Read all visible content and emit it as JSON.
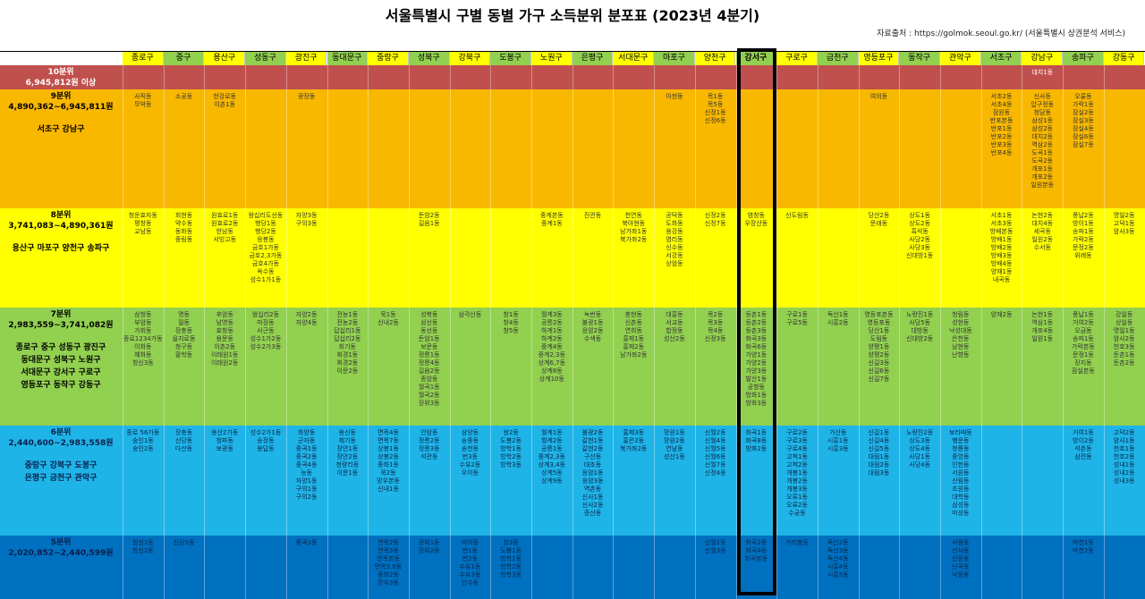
{
  "title": "서울특별시 구별 동별 가구 소득분위 분포표 (2023년 4분기)",
  "source": "자료출처 : https://golmok.seoul.go.kr/ (서울특별시 상권분석 서비스)",
  "districts": [
    "종로구",
    "중구",
    "용산구",
    "성동구",
    "광진구",
    "동대문구",
    "중랑구",
    "성북구",
    "강북구",
    "도봉구",
    "노원구",
    "은평구",
    "서대문구",
    "마포구",
    "양천구",
    "강서구",
    "구로구",
    "금천구",
    "영등포구",
    "동작구",
    "관악구",
    "서초구",
    "강남구",
    "송파구",
    "강동구"
  ],
  "highlighted_district": "강서구",
  "tiers": [
    {
      "name": "10분위",
      "range": "6,945,812원 이상",
      "districts_line": "",
      "color": "#c0504d",
      "cells": {
        "22": "대치1동"
      }
    },
    {
      "name": "9분위",
      "range": "4,890,362~6,945,811원",
      "districts_line": "서초구 강남구",
      "color": "#f9b800",
      "cells": {
        "0": "사직동\n무악동",
        "1": "소공동",
        "2": "한강로동\n이촌1동",
        "4": "광장동",
        "13": "아현동",
        "14": "목1동\n목5동\n신정1동\n신정6동",
        "18": "여의동",
        "21": "서초2동\n서초4동\n잠원동\n반포본동\n반포1동\n반포2동\n반포3동\n반포4동",
        "22": "신사동\n압구정동\n청담동\n삼성1동\n삼성2동\n대치2동\n역삼2동\n도곡1동\n도곡2동\n개포1동\n개포2동\n일원본동",
        "23": "오륜동\n가락1동\n잠실2동\n잠실3동\n잠실4동\n잠실6동\n잠실7동"
      }
    },
    {
      "name": "8분위",
      "range": "3,741,083~4,890,361원",
      "districts_line": "용산구 마포구 양천구 송파구",
      "color": "#ffff00",
      "cells": {
        "0": "청운효자동\n평창동\n교남동",
        "1": "회현동\n약수동\n동화동\n중림동",
        "2": "원효로1동\n원효로2동\n한남동\n서빙고동",
        "3": "왕십리도선동\n행당1동\n행당2동\n응봉동\n금호1가동\n금호2,3가동\n금호4가동\n옥수동\n성수1가1동",
        "4": "자양3동\n구의3동",
        "7": "돈암2동\n길음1동",
        "10": "중계본동\n중계1동",
        "11": "진관동",
        "12": "천연동\n북아현동\n남가좌1동\n북가좌2동",
        "13": "공덕동\n도화동\n용강동\n염리동\n신수동\n서강동\n상암동",
        "14": "신정2동\n신정7동",
        "15": "염창동\n우장산동",
        "16": "신도림동",
        "18": "당산2동\n문래동",
        "19": "상도1동\n상도2동\n흑석동\n사당2동\n사당3동\n신대방1동",
        "21": "서초1동\n서초3동\n방배본동\n방배1동\n방배2동\n방배3동\n방배4동\n양재1동\n내곡동",
        "22": "논현2동\n대치4동\n세곡동\n일원2동\n수서동",
        "23": "풍납2동\n방이1동\n송파1동\n가락2동\n문정2동\n위례동",
        "24": "명일2동\n고덕1동\n암사3동"
      }
    },
    {
      "name": "7분위",
      "range": "2,983,559~3,741,082원",
      "districts_line": "종로구 중구 성동구 광진구\n동대문구 성북구 노원구\n서대문구 강서구 구로구\n영등포구 동작구 강동구",
      "color": "#92d050",
      "cells": {
        "0": "삼청동\n부암동\n가회동\n종로1234가동\n이화동\n혜화동\n창신3동",
        "1": "명동\n필동\n장충동\n을지로동\n청구동\n황학동",
        "2": "후암동\n남영동\n효창동\n용문동\n이촌2동\n이태원1동\n이태원2동",
        "3": "왕십리2동\n마장동\n사근동\n성수1가2동\n성수2가3동",
        "4": "자양2동\n자양4동",
        "5": "전농1동\n전농2동\n답십리1동\n답십리2동\n회기동\n휘경1동\n휘경2동\n이문2동",
        "6": "묵1동\n신내2동",
        "7": "성북동\n삼선동\n동선동\n돈암1동\n보문동\n정릉1동\n정릉4동\n길음2동\n종암동\n월곡1동\n월곡2동\n장위3동",
        "8": "삼각산동",
        "9": "창1동\n창4동\n창5동",
        "10": "월계3동\n공릉2동\n하계1동\n하계2동\n중계4동\n중계2,3동\n상계6,7동\n상계8동\n상계10동",
        "11": "녹번동\n불광1동\n응암2동\n수색동",
        "12": "충현동\n신촌동\n연희동\n홍제1동\n홍제2동\n남가좌2동",
        "13": "대흥동\n서교동\n합정동\n성산2동",
        "14": "목2동\n목3동\n목4동\n신정3동",
        "15": "등촌1동\n등촌2동\n등촌3동\n화곡3동\n화곡6동\n가양1동\n가양2동\n가양3동\n발산1동\n공항동\n방화1동\n방화3동",
        "16": "구로1동\n구로5동",
        "17": "독산1동\n시흥2동",
        "18": "영등포본동\n영등포동\n당산1동\n도림동\n양평1동\n양평2동\n신길3동\n신길6동\n신길7동",
        "19": "노량진1동\n사당5동\n대방동\n신대방2동",
        "20": "청림동\n성현동\n낙성대동\n은천동\n남현동\n난향동",
        "21": "양재2동",
        "22": "논현1동\n역삼1동\n개포4동\n일원1동",
        "23": "풍납1동\n거여2동\n오금동\n송파1동\n가락본동\n문정1동\n장지동\n잠실본동",
        "24": "강일동\n상일동\n명일1동\n암사2동\n천호3동\n둔촌1동\n둔촌2동"
      }
    },
    {
      "name": "6분위",
      "range": "2,440,600~2,983,558원",
      "districts_line": "중랑구 강북구 도봉구\n은평구 금천구 관악구",
      "color": "#1fb4e8",
      "cells": {
        "0": "종로 56가동\n숭인1동\n숭인2동",
        "1": "장충동\n신당동\n다산동",
        "2": "용산2가동\n청파동\n보광동",
        "3": "성수2가1동\n송정동\n용답동",
        "4": "화양동\n군자동\n중곡1동\n중곡2동\n중곡4동\n능동\n자양1동\n구의1동\n구의2동",
        "5": "용신동\n제기동\n장안1동\n장안2동\n청량리동\n이문1동",
        "6": "면목4동\n면목7동\n상봉1동\n상봉2동\n중화1동\n묵2동\n망우본동\n신내1동",
        "7": "안암동\n정릉2동\n정릉3동\n석관동",
        "8": "삼양동\n송중동\n송천동\n번3동\n수유2동\n우이동",
        "9": "쌍2동\n도봉2동\n방학1동\n방학2동\n방학3동",
        "10": "월계1동\n월계2동\n공릉1동\n중계2,3동\n상계3,4동\n상계5동\n상계9동",
        "11": "불광2동\n갈현1동\n갈현2동\n구산동\n대조동\n응암1동\n응암3동\n역촌동\n신사1동\n신사2동\n증산동",
        "12": "홍제3동\n홍은2동\n북가좌2동",
        "13": "망원1동\n망원2동\n연남동\n성산1동",
        "14": "신월2동\n신월4동\n신월5동\n신월6동\n신월7동\n신정4동",
        "15": "화곡1동\n화곡8동\n방화2동",
        "16": "구로2동\n구로3동\n구로4동\n고척1동\n고척2동\n개봉1동\n개봉2동\n개봉3동\n오류1동\n오류2동\n수궁동",
        "17": "가산동\n시흥1동\n시흥3동",
        "18": "신길1동\n신길4동\n신길5동\n대림1동\n대림2동\n대림3동",
        "19": "노량진2동\n상도3동\n상도4동\n사당1동\n사당4동",
        "20": "보라매동\n행운동\n청룡동\n중앙동\n인헌동\n서원동\n신림동\n조원동\n대학동\n삼성동\n미성동",
        "23": "거여1동\n방이2동\n석촌동\n삼전동",
        "24": "고덕2동\n암사1동\n천호1동\n천호2동\n성내1동\n성내2동\n성내3동"
      }
    },
    {
      "name": "5분위",
      "range": "2,020,852~2,440,599원",
      "districts_line": "",
      "color": "#0070c0",
      "cells": {
        "0": "창신1동\n창신2동",
        "1": "신당5동",
        "4": "중곡3동",
        "6": "면목2동\n면목3동\n면목본동\n면목3,8동\n중화2동\n망우3동",
        "7": "장위1동\n장위2동",
        "8": "미아동\n번1동\n번2동\n수유1동\n수유3동\n인수동",
        "9": "창3동\n도봉1동\n방학1동\n방학2동\n방학3동",
        "14": "신월1동\n신월3동",
        "15": "화곡2동\n화곡4동\n화곡본동",
        "16": "가리봉동",
        "17": "독산2동\n독산3동\n독산4동\n시흥4동\n시흥5동",
        "20": "서림동\n신사동\n신원동\n난곡동\n낙원동",
        "23": "마천1동\n마천2동"
      }
    }
  ]
}
